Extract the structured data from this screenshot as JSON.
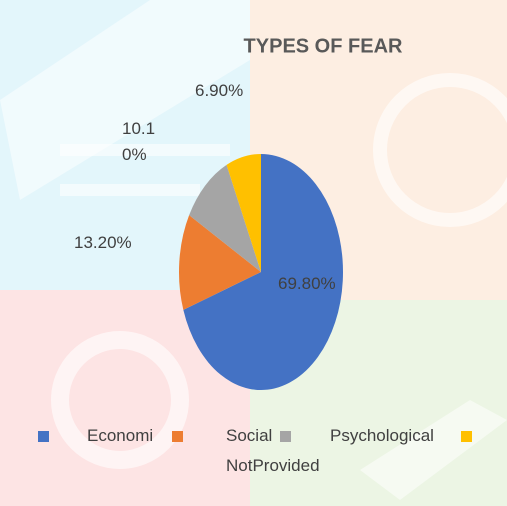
{
  "chart_data": {
    "type": "pie",
    "title": "TYPES OF FEAR",
    "categories": [
      "Economi",
      "Social",
      "Psychological",
      "NotProvided"
    ],
    "values": [
      69.8,
      13.2,
      10.1,
      6.9
    ],
    "value_labels": [
      "69.80%",
      "13.20%",
      "10.10%",
      "6.90%"
    ],
    "colors": [
      "#4472c4",
      "#ed7d31",
      "#a5a5a5",
      "#ffc000"
    ],
    "legend": "bottom"
  }
}
